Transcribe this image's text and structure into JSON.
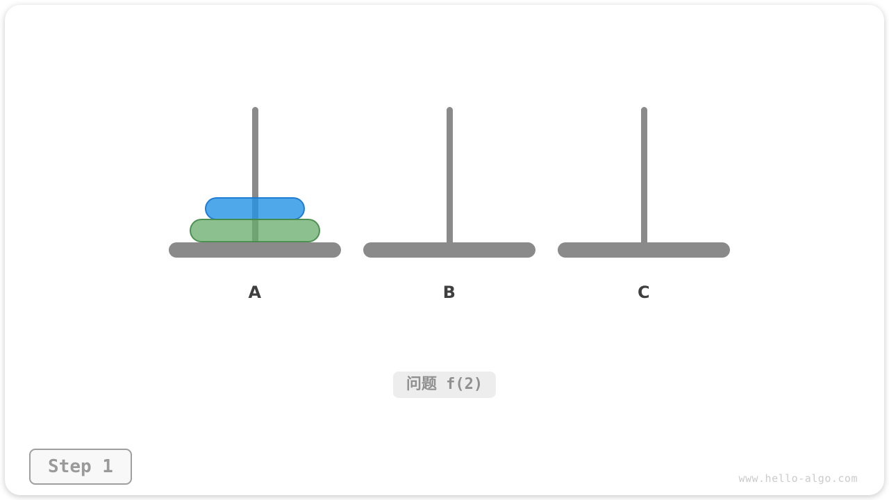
{
  "figure": {
    "pegs": [
      {
        "label": "A",
        "disks": [
          {
            "name": "disk-small",
            "fill": "#4FA8EA",
            "border": "#2387D8"
          },
          {
            "name": "disk-large",
            "fill": "#8FC690",
            "border": "#5FA161"
          }
        ]
      },
      {
        "label": "B",
        "disks": []
      },
      {
        "label": "C",
        "disks": []
      }
    ]
  },
  "problem_badge": {
    "label": "问题 f(2)"
  },
  "step_badge": {
    "label": "Step 1"
  },
  "watermark": {
    "text": "www.hello-algo.com"
  },
  "colors": {
    "peg_gray": "#8A8A8A",
    "disk_small_fill": "#4FA8EA",
    "disk_small_border": "#2387D8",
    "disk_large_fill": "#8FC690",
    "disk_large_border": "#5FA161",
    "peg_label_text": "#3F3F3F",
    "badge_background": "#EDEDED",
    "badge_text": "#909090",
    "step_border": "#9E9E9E",
    "watermark_text": "#CBCBCB"
  }
}
